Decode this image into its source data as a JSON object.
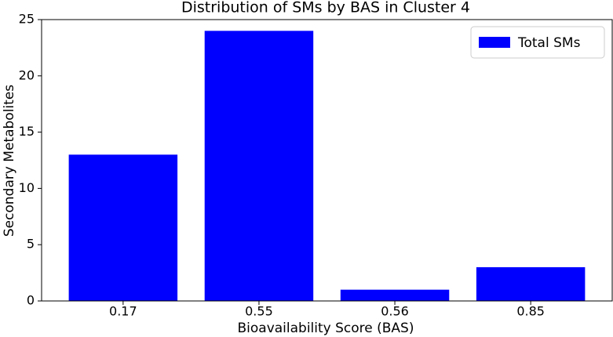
{
  "chart_data": {
    "type": "bar",
    "title": "Distribution of SMs by BAS in Cluster 4",
    "x_label": "Bioavailability Score (BAS)",
    "y_label": "Secondary Metabolites",
    "categories": [
      "0.17",
      "0.55",
      "0.56",
      "0.85"
    ],
    "series": [
      {
        "name": "Total SMs",
        "color": "#0000ff",
        "values": [
          13,
          24,
          1,
          3
        ]
      }
    ],
    "ylim": [
      0,
      25
    ],
    "yticks": [
      0,
      5,
      10,
      15,
      20,
      25
    ],
    "legend": "upper right"
  }
}
